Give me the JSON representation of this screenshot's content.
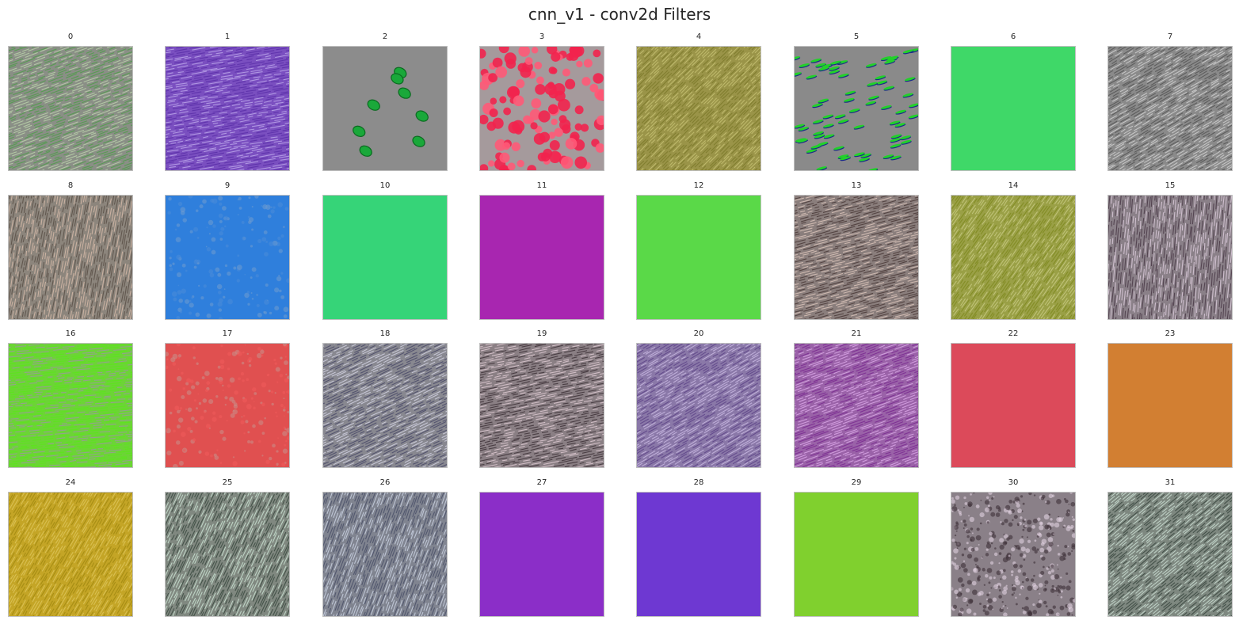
{
  "figure": {
    "title": "cnn_v1 - conv2d Filters"
  },
  "filters": [
    {
      "label": "0",
      "pattern": "stripes",
      "base": "#8a8f86",
      "c1": "#4f9e4a",
      "c2": "#b9d1a9",
      "angle": 70
    },
    {
      "label": "1",
      "pattern": "stripes",
      "base": "#7a4fc0",
      "c1": "#5a2fa8",
      "c2": "#b9a2e8",
      "angle": 80
    },
    {
      "label": "2",
      "pattern": "blobs",
      "base": "#8c8c8c",
      "c1": "#1aa83a",
      "c2": "#0b6a20",
      "count": 8
    },
    {
      "label": "3",
      "pattern": "dots",
      "base": "#a59a9c",
      "c1": "#f2244e",
      "c2": "#ff5a78",
      "count": 120
    },
    {
      "label": "4",
      "pattern": "stripes",
      "base": "#9a9448",
      "c1": "#7d7a2c",
      "c2": "#c4bf72",
      "angle": 45
    },
    {
      "label": "5",
      "pattern": "dashes",
      "base": "#8a8a8a",
      "c1": "#22d02a",
      "c2": "#1a2a8a",
      "count": 70
    },
    {
      "label": "6",
      "pattern": "solid",
      "base": "#3fd868"
    },
    {
      "label": "7",
      "pattern": "stripes",
      "base": "#8a8a8a",
      "c1": "#555555",
      "c2": "#cfcfcf",
      "angle": 60
    },
    {
      "label": "8",
      "pattern": "stripes",
      "base": "#8c857c",
      "c1": "#5b5048",
      "c2": "#d3b8a8",
      "angle": 10
    },
    {
      "label": "9",
      "pattern": "mottled",
      "base": "#2f7fdc",
      "c1": "#4a8bd8",
      "c2": "#6a9ad0",
      "count": 160
    },
    {
      "label": "10",
      "pattern": "solid",
      "base": "#36d478"
    },
    {
      "label": "11",
      "pattern": "solid",
      "base": "#a826b0"
    },
    {
      "label": "12",
      "pattern": "solid",
      "base": "#5ad948"
    },
    {
      "label": "13",
      "pattern": "stripes",
      "base": "#8a7e7c",
      "c1": "#4a3a38",
      "c2": "#d8c2b8",
      "angle": 75
    },
    {
      "label": "14",
      "pattern": "stripes",
      "base": "#9aa046",
      "c1": "#7f8a20",
      "c2": "#c6c880",
      "angle": 35
    },
    {
      "label": "15",
      "pattern": "stripes",
      "base": "#8a8088",
      "c1": "#4a3a48",
      "c2": "#d8c8d8",
      "angle": 5
    },
    {
      "label": "16",
      "pattern": "stripes",
      "base": "#6cd436",
      "c1": "#5ae61a",
      "c2": "#9a9a9a",
      "angle": 85
    },
    {
      "label": "17",
      "pattern": "mottled",
      "base": "#e05050",
      "c1": "#c98a86",
      "c2": "#ef5a5a",
      "count": 200
    },
    {
      "label": "18",
      "pattern": "stripes",
      "base": "#888890",
      "c1": "#4a4a68",
      "c2": "#d0d0e0",
      "angle": 65
    },
    {
      "label": "19",
      "pattern": "stripes",
      "base": "#8a7f84",
      "c1": "#3e3238",
      "c2": "#dcc8d0",
      "angle": 78
    },
    {
      "label": "20",
      "pattern": "stripes",
      "base": "#8a78a8",
      "c1": "#5e4488",
      "c2": "#c7b6e0",
      "angle": 60
    },
    {
      "label": "21",
      "pattern": "stripes",
      "base": "#9a62a8",
      "c1": "#7a2a90",
      "c2": "#d9a6e6",
      "angle": 70
    },
    {
      "label": "22",
      "pattern": "solid",
      "base": "#dc4a5a"
    },
    {
      "label": "23",
      "pattern": "solid",
      "base": "#d27f32"
    },
    {
      "label": "24",
      "pattern": "stripes",
      "base": "#c4a526",
      "c1": "#a28a12",
      "c2": "#ddc45a",
      "angle": 30
    },
    {
      "label": "25",
      "pattern": "stripes",
      "base": "#808880",
      "c1": "#3a4a40",
      "c2": "#c8e0d0",
      "angle": 25
    },
    {
      "label": "26",
      "pattern": "stripes",
      "base": "#808490",
      "c1": "#4a5068",
      "c2": "#c8d0e0",
      "angle": 20
    },
    {
      "label": "27",
      "pattern": "solid",
      "base": "#8b2ec8"
    },
    {
      "label": "28",
      "pattern": "solid",
      "base": "#6e38d2"
    },
    {
      "label": "29",
      "pattern": "solid",
      "base": "#80d02e"
    },
    {
      "label": "30",
      "pattern": "mottled",
      "base": "#8a8088",
      "c1": "#3e3038",
      "c2": "#e0d0e0",
      "count": 420
    },
    {
      "label": "31",
      "pattern": "stripes",
      "base": "#7e8880",
      "c1": "#3a4840",
      "c2": "#c8dcd0",
      "angle": 50
    }
  ]
}
